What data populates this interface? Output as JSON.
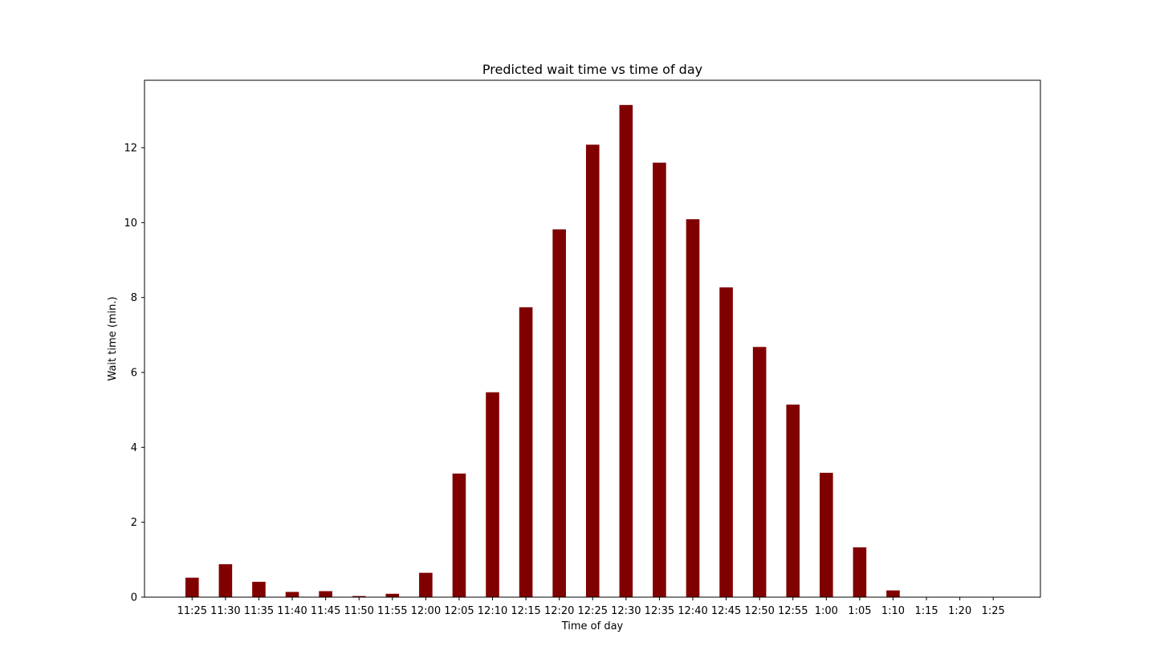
{
  "chart_data": {
    "type": "bar",
    "title": "Predicted wait time vs time of day",
    "xlabel": "Time of day",
    "ylabel": "Wait time (min.)",
    "categories": [
      "11:25",
      "11:30",
      "11:35",
      "11:40",
      "11:45",
      "11:50",
      "11:55",
      "12:00",
      "12:05",
      "12:10",
      "12:15",
      "12:20",
      "12:25",
      "12:30",
      "12:35",
      "12:40",
      "12:45",
      "12:50",
      "12:55",
      "1:00",
      "1:05",
      "1:10",
      "1:15",
      "1:20",
      "1:25"
    ],
    "values": [
      0.52,
      0.88,
      0.41,
      0.14,
      0.16,
      0.03,
      0.09,
      0.65,
      3.3,
      5.47,
      7.74,
      9.82,
      12.08,
      13.14,
      11.6,
      10.09,
      8.27,
      6.68,
      5.14,
      3.32,
      1.33,
      0.18,
      0,
      0,
      0
    ],
    "ylim": [
      0,
      13.8
    ],
    "yticks": [
      0,
      2,
      4,
      6,
      8,
      10,
      12
    ],
    "grid": false,
    "colors": {
      "bar": "#800000",
      "axis": "#000000",
      "background": "#ffffff"
    }
  }
}
